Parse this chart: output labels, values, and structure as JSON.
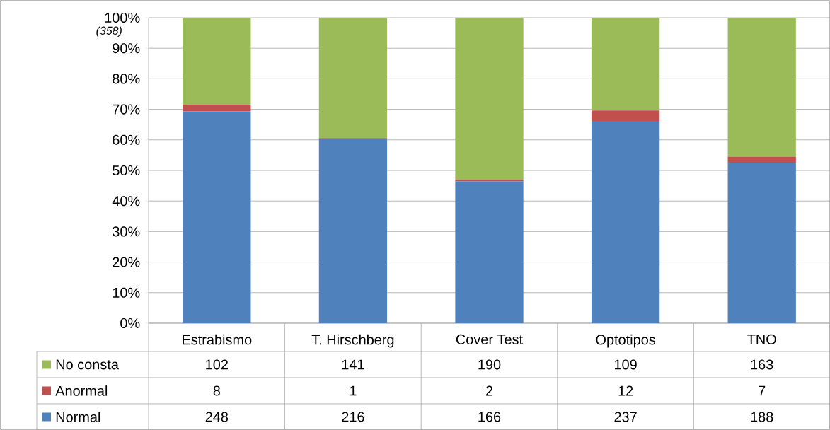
{
  "chart_data": {
    "type": "bar",
    "stacked": true,
    "categories": [
      "Estrabismo",
      "T. Hirschberg",
      "Cover Test",
      "Optotipos",
      "TNO"
    ],
    "series": [
      {
        "name": "Normal",
        "color": "#4f81bd",
        "values": [
          69.3,
          60.3,
          46.4,
          66.2,
          52.5
        ]
      },
      {
        "name": "Anormal",
        "color": "#c0504d",
        "values": [
          2.2,
          0.3,
          0.6,
          3.4,
          2.0
        ]
      },
      {
        "name": "No consta",
        "color": "#9bbb59",
        "values": [
          28.5,
          39.4,
          53.0,
          30.4,
          45.5
        ]
      }
    ],
    "ylim": [
      0,
      100
    ],
    "yticks": [
      {
        "value": 0,
        "label": "0%"
      },
      {
        "value": 10,
        "label": "10%"
      },
      {
        "value": 20,
        "label": "20%"
      },
      {
        "value": 30,
        "label": "30%"
      },
      {
        "value": 40,
        "label": "40%"
      },
      {
        "value": 50,
        "label": "50%"
      },
      {
        "value": 60,
        "label": "60%"
      },
      {
        "value": 70,
        "label": "70%"
      },
      {
        "value": 80,
        "label": "80%"
      },
      {
        "value": 90,
        "label": "90%"
      },
      {
        "value": 100,
        "label": "100%"
      }
    ],
    "grid": "y",
    "legend": "bottom left",
    "annotations": [
      "(358)",
      "102",
      "141",
      "190",
      "109",
      "163",
      "8",
      "1",
      "2",
      "12",
      "7",
      "248",
      "216",
      "166",
      "237",
      "188"
    ]
  }
}
